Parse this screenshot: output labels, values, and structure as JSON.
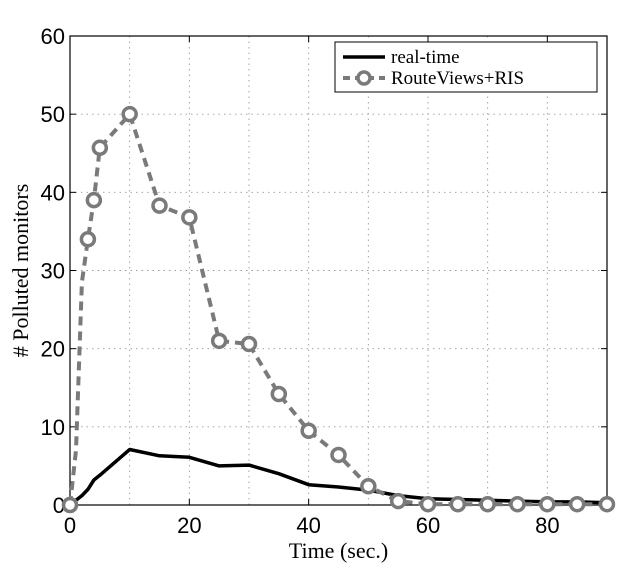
{
  "chart_data": {
    "type": "line",
    "title": "",
    "xlabel": "Time (sec.)",
    "ylabel": "# Polluted monitors",
    "xlim": [
      0,
      90
    ],
    "ylim": [
      0,
      60
    ],
    "xticks": [
      0,
      20,
      40,
      60,
      80
    ],
    "yticks": [
      0,
      10,
      20,
      30,
      40,
      50,
      60
    ],
    "grid": true,
    "legend_position": "top-right",
    "series": [
      {
        "name": "real-time",
        "color": "#000000",
        "style": "solid",
        "marker": "none",
        "x": [
          0,
          1,
          2,
          3,
          4,
          5,
          10,
          15,
          20,
          25,
          30,
          35,
          40,
          45,
          50,
          55,
          60,
          65,
          70,
          75,
          80,
          85,
          90
        ],
        "y": [
          0,
          0.6,
          1.2,
          2,
          3.2,
          3.8,
          7.1,
          6.3,
          6.1,
          5,
          5.1,
          4,
          2.6,
          2.3,
          1.9,
          1.2,
          0.8,
          0.7,
          0.6,
          0.5,
          0.4,
          0.4,
          0.3
        ]
      },
      {
        "name": "RouteViews+RIS",
        "color": "#7a7a7a",
        "style": "dashed",
        "marker": "circle",
        "x": [
          0,
          1,
          2,
          3,
          4,
          5,
          10,
          15,
          20,
          25,
          30,
          35,
          40,
          45,
          50,
          55,
          60,
          65,
          70,
          75,
          80,
          85,
          90
        ],
        "y": [
          0,
          7,
          28.5,
          34,
          39,
          45.7,
          50,
          38.3,
          36.8,
          21,
          20.6,
          14.2,
          9.5,
          6.4,
          2.4,
          0.5,
          0.1,
          0.1,
          0.1,
          0.1,
          0.1,
          0.1,
          0.1
        ]
      }
    ]
  }
}
